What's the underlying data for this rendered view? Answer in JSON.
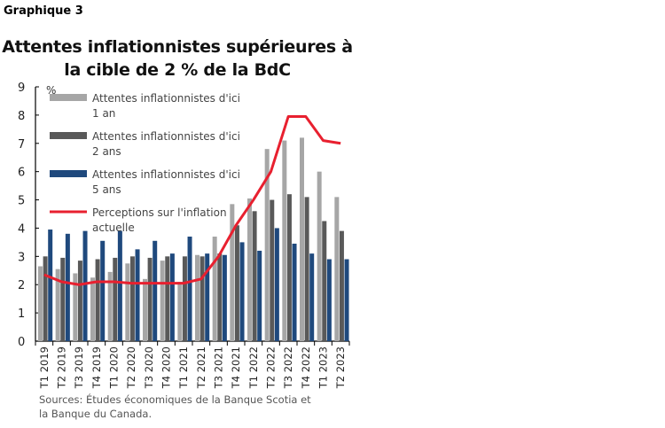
{
  "label": "Graphique 3",
  "source": "Sources: Études économiques de la Banque Scotia et la Banque du Canada.",
  "chart_data": {
    "type": "bar",
    "title": "Attentes inflationnistes supérieures à la cible de 2 % de la BdC",
    "ylabel": "%",
    "ylim": [
      0,
      9
    ],
    "yticks": [
      0,
      1,
      2,
      3,
      4,
      5,
      6,
      7,
      8,
      9
    ],
    "categories": [
      "T1 2019",
      "T2 2019",
      "T3 2019",
      "T4 2019",
      "T1 2020",
      "T2 2020",
      "T3 2020",
      "T4 2020",
      "T1 2021",
      "T2 2021",
      "T3 2021",
      "T4 2021",
      "T1 2022",
      "T2 2022",
      "T3 2022",
      "T4 2022",
      "T1 2023",
      "T2 2023"
    ],
    "series": [
      {
        "name": "Attentes inflationnistes d'ici 1 an",
        "type": "bar",
        "color": "#a6a6a6",
        "values": [
          2.65,
          2.55,
          2.4,
          2.25,
          2.45,
          2.75,
          2.2,
          2.85,
          2.1,
          3.05,
          3.7,
          4.85,
          5.05,
          6.8,
          7.1,
          7.2,
          6.0,
          5.1
        ]
      },
      {
        "name": "Attentes inflationnistes d'ici 2 ans",
        "type": "bar",
        "color": "#595959",
        "values": [
          3.0,
          2.95,
          2.85,
          2.9,
          2.95,
          3.0,
          2.95,
          3.0,
          3.0,
          3.0,
          3.1,
          4.1,
          4.6,
          5.0,
          5.2,
          5.1,
          4.25,
          3.9
        ]
      },
      {
        "name": "Attentes inflationnistes d'ici 5 ans",
        "type": "bar",
        "color": "#1f497d",
        "values": [
          3.95,
          3.8,
          3.9,
          3.55,
          3.9,
          3.25,
          3.55,
          3.1,
          3.7,
          3.1,
          3.05,
          3.5,
          3.2,
          4.0,
          3.45,
          3.1,
          2.9,
          2.9
        ]
      },
      {
        "name": "Perceptions sur l'inflation actuelle",
        "type": "line",
        "color": "#e8202f",
        "values": [
          2.35,
          2.1,
          2.0,
          2.1,
          2.1,
          2.05,
          2.05,
          2.05,
          2.05,
          2.2,
          3.0,
          4.1,
          5.0,
          6.0,
          7.95,
          7.95,
          7.1,
          7.0
        ]
      }
    ],
    "legend_labels": [
      [
        "Attentes inflationnistes d'ici",
        "1 an"
      ],
      [
        "Attentes inflationnistes d'ici",
        "2 ans"
      ],
      [
        "Attentes inflationnistes d'ici",
        "5 ans"
      ],
      [
        "Perceptions sur l'inflation",
        "actuelle"
      ]
    ],
    "legend": "top-left"
  }
}
